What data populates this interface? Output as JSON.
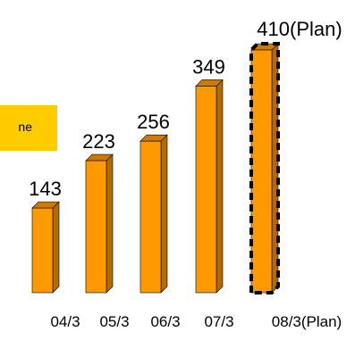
{
  "legend": {
    "label": "ne",
    "color": "#ffcc00"
  },
  "chart_data": {
    "type": "bar",
    "title": "",
    "xlabel": "",
    "ylabel": "",
    "categories": [
      "04/3",
      "05/3",
      "06/3",
      "07/3",
      "08/3(Plan)"
    ],
    "values": [
      143,
      223,
      256,
      349,
      410
    ],
    "value_labels": [
      "143",
      "223",
      "256",
      "349",
      "410(Plan)"
    ],
    "plan_flags": [
      false,
      false,
      false,
      false,
      true
    ],
    "bar_color": "#ff9900",
    "bar_style": "3d-column",
    "plan_border": "dashed",
    "grid": false,
    "ylim": [
      0,
      410
    ]
  }
}
